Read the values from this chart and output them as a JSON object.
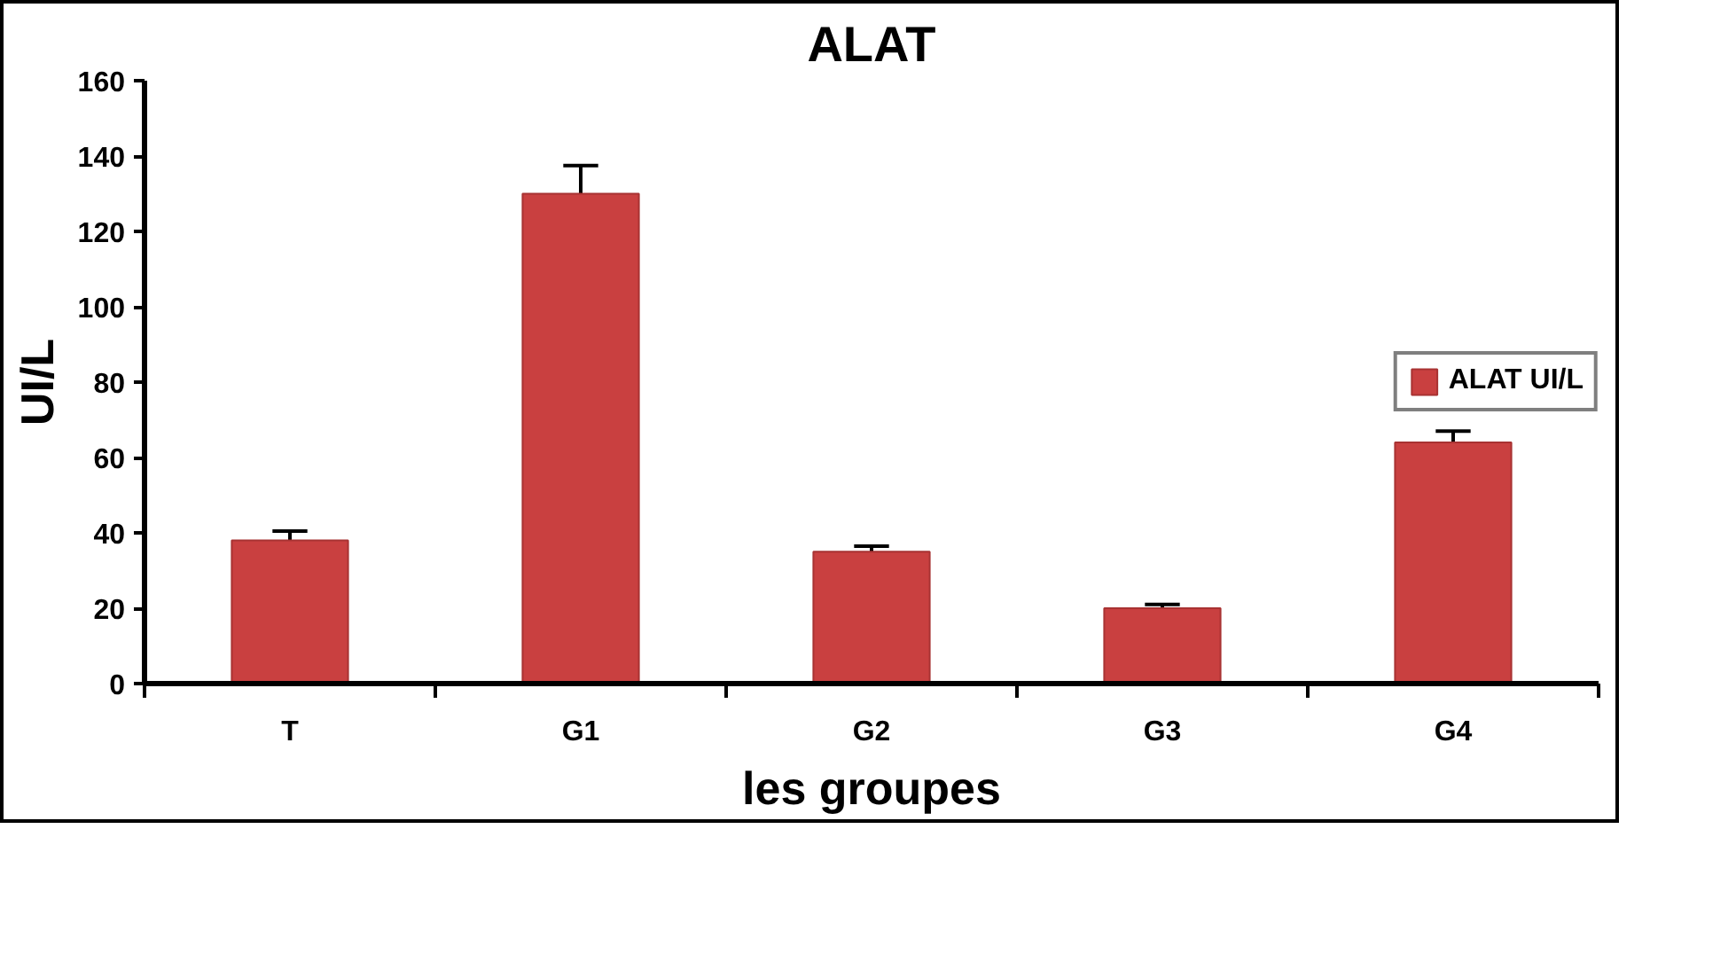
{
  "chart_data": {
    "type": "bar",
    "title": "ALAT",
    "xlabel": "les groupes",
    "ylabel": "UI/L",
    "categories": [
      "T",
      "G1",
      "G2",
      "G3",
      "G4"
    ],
    "series": [
      {
        "name": "ALAT UI/L",
        "color": "#c94040",
        "values": [
          38,
          130,
          35,
          20,
          64
        ],
        "errors": [
          2.5,
          7.5,
          1.5,
          1,
          3
        ]
      }
    ],
    "ylim": [
      0,
      160
    ],
    "yticks": [
      0,
      20,
      40,
      60,
      80,
      100,
      120,
      140,
      160
    ],
    "grid": false,
    "legend": "right"
  }
}
